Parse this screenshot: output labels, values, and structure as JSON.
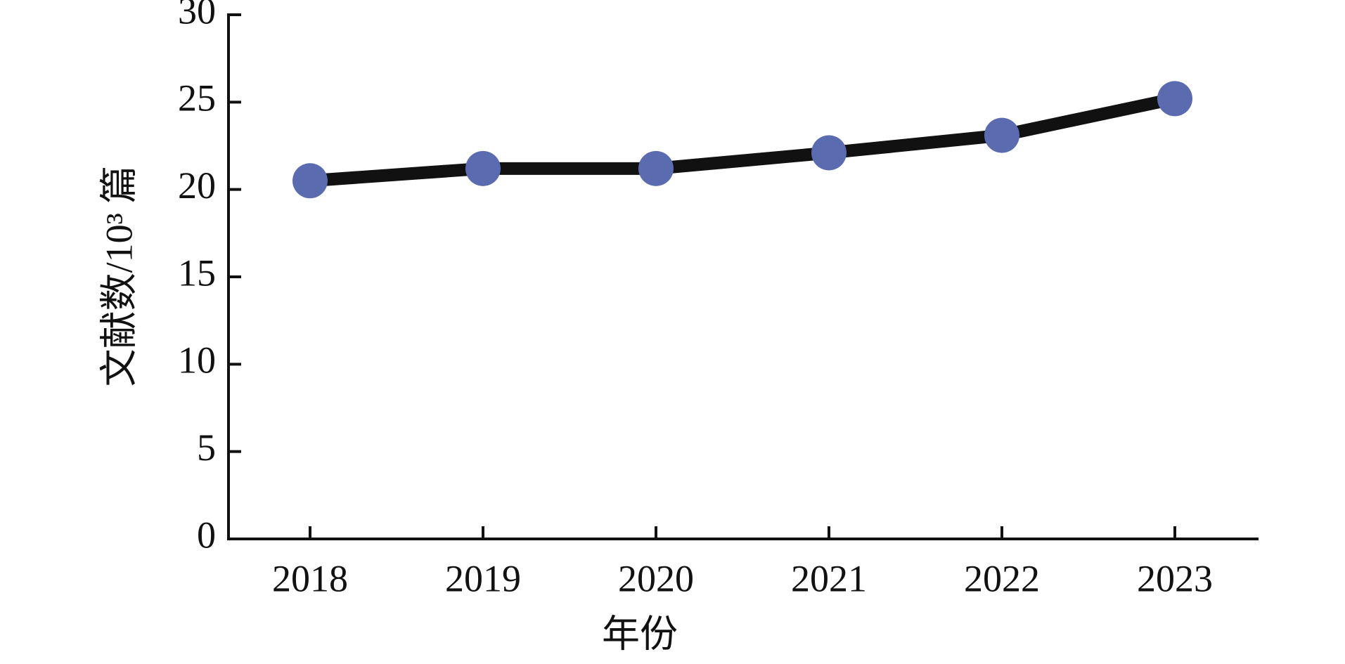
{
  "chart_data": {
    "type": "line",
    "x_label": "年份",
    "y_label": "文献数/10³ 篇",
    "categories": [
      "2018",
      "2019",
      "2020",
      "2021",
      "2022",
      "2023"
    ],
    "values": [
      20.5,
      21.2,
      21.2,
      22.1,
      23.1,
      25.2
    ],
    "color": "#5b6bb0",
    "line_color": "#111111",
    "ylim": [
      0,
      30
    ],
    "yticks": [
      0,
      5,
      10,
      15,
      20,
      25,
      30
    ],
    "grid": false
  }
}
